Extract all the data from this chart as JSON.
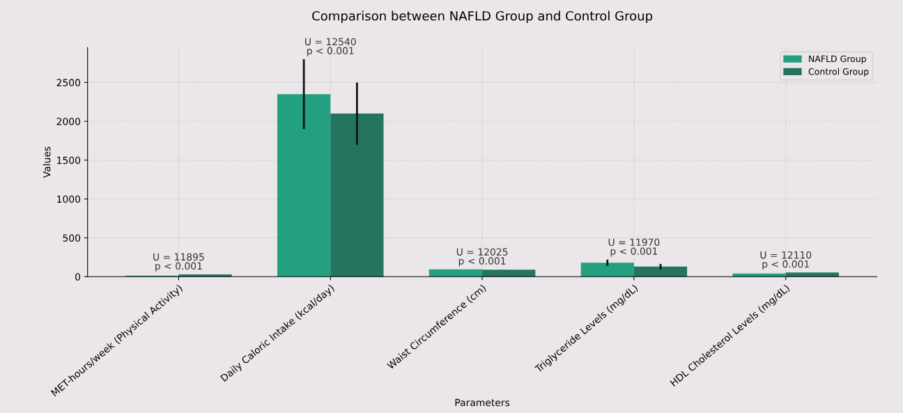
{
  "chart_data": {
    "type": "bar",
    "title": "Comparison between NAFLD Group and Control Group",
    "xlabel": "Parameters",
    "ylabel": "Values",
    "categories": [
      "MET-hours/week (Physical Activity)",
      "Daily Caloric Intake (kcal/day)",
      "Waist Circumference (cm)",
      "Triglyceride Levels (mg/dL)",
      "HDL Cholesterol Levels (mg/dL)"
    ],
    "series": [
      {
        "name": "NAFLD Group",
        "color": "#23a07f",
        "values": [
          15,
          2350,
          95,
          180,
          40
        ],
        "errors": [
          null,
          450,
          null,
          40,
          null
        ]
      },
      {
        "name": "Control Group",
        "color": "#237560",
        "values": [
          30,
          2100,
          90,
          130,
          55
        ],
        "errors": [
          null,
          400,
          null,
          35,
          null
        ]
      }
    ],
    "annotations": [
      "U = 11895\np < 0.001",
      "U = 12540\np < 0.001",
      "U = 12025\np < 0.001",
      "U = 11970\np < 0.001",
      "U = 12110\np < 0.001"
    ],
    "ylim": [
      0,
      2950
    ],
    "yticks": [
      0,
      500,
      1000,
      1500,
      2000,
      2500
    ],
    "grid": true,
    "legend": "top right"
  }
}
